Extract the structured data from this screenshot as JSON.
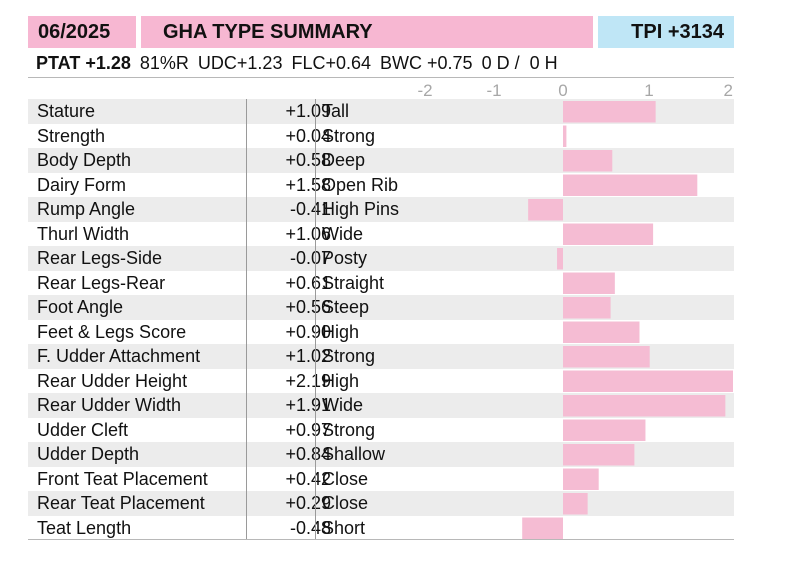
{
  "header": {
    "date": "06/2025",
    "title": "GHA TYPE SUMMARY",
    "tpi": "TPI +3134"
  },
  "subline": {
    "ptat": "PTAT +1.28",
    "reliability": "81%R",
    "udc": "UDC+1.23",
    "flc": "FLC+0.64",
    "bwc": "BWC +0.75",
    "dh": "0 D /  0 H"
  },
  "colors": {
    "header_pink": "#f7b7d2",
    "header_blue": "#bfe6f6",
    "bar_pink": "#f5bcd3",
    "row_shade": "#ececec"
  },
  "chart_data": {
    "type": "bar",
    "orientation": "horizontal",
    "xlim": [
      -2,
      2
    ],
    "ticks": [
      "-2",
      "-1",
      "0",
      "1",
      "2"
    ],
    "rows": [
      {
        "trait": "Stature",
        "value": 1.09,
        "value_label": "+1.09",
        "desc": "Tall"
      },
      {
        "trait": "Strength",
        "value": 0.04,
        "value_label": "+0.04",
        "desc": "Strong"
      },
      {
        "trait": "Body Depth",
        "value": 0.58,
        "value_label": "+0.58",
        "desc": "Deep"
      },
      {
        "trait": "Dairy Form",
        "value": 1.58,
        "value_label": "+1.58",
        "desc": "Open Rib"
      },
      {
        "trait": "Rump Angle",
        "value": -0.41,
        "value_label": "-0.41",
        "desc": "High Pins"
      },
      {
        "trait": "Thurl Width",
        "value": 1.06,
        "value_label": "+1.06",
        "desc": "Wide"
      },
      {
        "trait": "Rear Legs-Side",
        "value": -0.07,
        "value_label": "-0.07",
        "desc": "Posty"
      },
      {
        "trait": "Rear Legs-Rear",
        "value": 0.61,
        "value_label": "+0.61",
        "desc": "Straight"
      },
      {
        "trait": "Foot Angle",
        "value": 0.56,
        "value_label": "+0.56",
        "desc": "Steep"
      },
      {
        "trait": "Feet & Legs Score",
        "value": 0.9,
        "value_label": "+0.90",
        "desc": "High"
      },
      {
        "trait": "F. Udder Attachment",
        "value": 1.02,
        "value_label": "+1.02",
        "desc": "Strong"
      },
      {
        "trait": "Rear Udder Height",
        "value": 2.19,
        "value_label": "+2.19",
        "desc": "High"
      },
      {
        "trait": "Rear Udder Width",
        "value": 1.91,
        "value_label": "+1.91",
        "desc": "Wide"
      },
      {
        "trait": "Udder Cleft",
        "value": 0.97,
        "value_label": "+0.97",
        "desc": "Strong"
      },
      {
        "trait": "Udder Depth",
        "value": 0.84,
        "value_label": "+0.84",
        "desc": "Shallow"
      },
      {
        "trait": "Front Teat Placement",
        "value": 0.42,
        "value_label": "+0.42",
        "desc": "Close"
      },
      {
        "trait": "Rear Teat Placement",
        "value": 0.29,
        "value_label": "+0.29",
        "desc": "Close"
      },
      {
        "trait": "Teat Length",
        "value": -0.48,
        "value_label": "-0.48",
        "desc": "Short"
      }
    ]
  }
}
